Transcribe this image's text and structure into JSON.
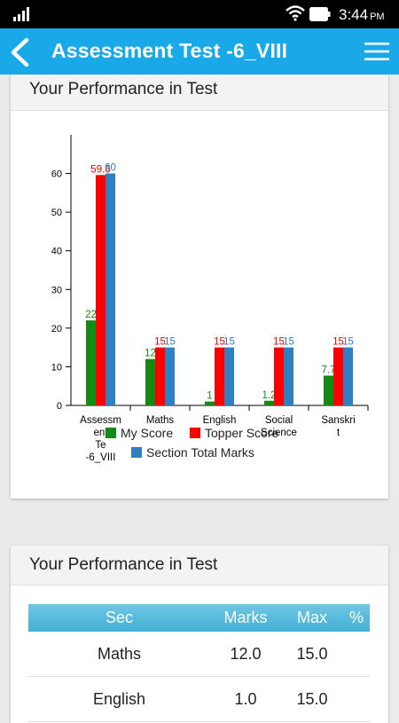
{
  "status_bar": {
    "time": "3:44",
    "ampm": "PM"
  },
  "app_bar": {
    "title": "Assessment Test -6_VIII"
  },
  "card1": {
    "title": "Your Performance in Test"
  },
  "card2": {
    "title": "Your Performance in Test"
  },
  "chart_data": {
    "type": "bar",
    "categories": [
      [
        "Assessm",
        "ent",
        "Te",
        "-6_VIII"
      ],
      [
        "Maths"
      ],
      [
        "English"
      ],
      [
        "Social",
        "Science"
      ],
      [
        "Sanskri",
        "t"
      ]
    ],
    "ylim": [
      0,
      70
    ],
    "yticks": [
      0,
      10,
      20,
      30,
      40,
      50,
      60
    ],
    "series": [
      {
        "name": "My Score",
        "color": "#138a13",
        "values": [
          22,
          12,
          1,
          1.2,
          7.7
        ],
        "labels": [
          "22",
          "12",
          "1",
          "1.2",
          "7.7"
        ]
      },
      {
        "name": "Topper Score",
        "color": "#ff0000",
        "values": [
          59.6,
          15,
          15,
          15,
          15
        ],
        "labels": [
          "59.6",
          "15",
          "15",
          "15",
          "15"
        ]
      },
      {
        "name": "Section Total Marks",
        "color": "#2f7fc1",
        "values": [
          60,
          15,
          15,
          15,
          15
        ],
        "labels": [
          "60",
          "15",
          "15",
          "15",
          "15"
        ]
      }
    ],
    "legend": "bottom"
  },
  "table": {
    "headers": {
      "sec": "Sec",
      "marks": "Marks",
      "max": "Max",
      "pct": "%"
    },
    "rows": [
      {
        "sec": "Maths",
        "marks": "12.0",
        "max": "15.0",
        "pct": ""
      },
      {
        "sec": "English",
        "marks": "1.0",
        "max": "15.0",
        "pct": ""
      }
    ]
  }
}
